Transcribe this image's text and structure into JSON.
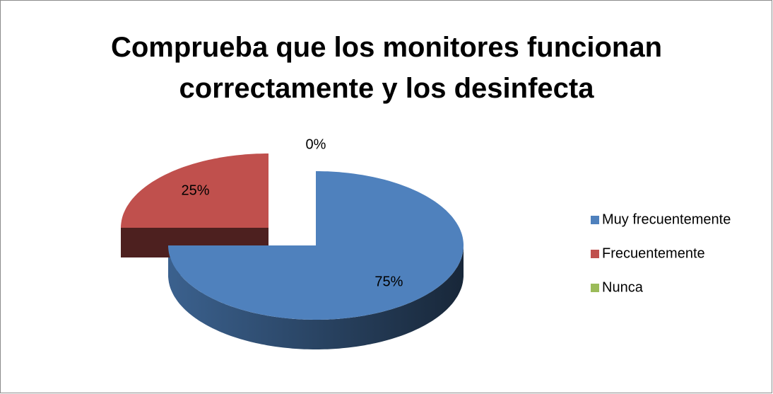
{
  "chart_data": {
    "type": "pie",
    "title": "Comprueba que los monitores funcionan correctamente y los desinfecta",
    "categories": [
      "Muy frecuentemente",
      "Frecuentemente",
      "Nunca"
    ],
    "values": [
      75,
      25,
      0
    ],
    "value_labels": [
      "75%",
      "25%",
      "0%"
    ],
    "colors": [
      "#4f81bd",
      "#c0504d",
      "#9bbb59"
    ],
    "legend": "right"
  }
}
